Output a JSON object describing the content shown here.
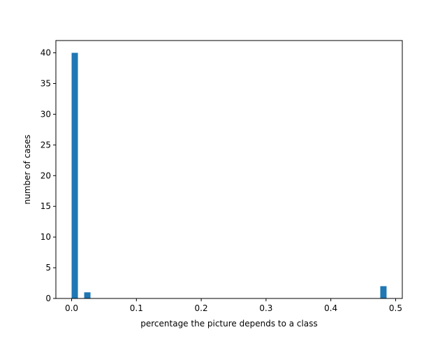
{
  "chart_data": {
    "type": "bar",
    "title": "",
    "xlabel": "percentage the picture depends to a class",
    "ylabel": "number of cases",
    "xlim": [
      -0.0243,
      0.5103
    ],
    "ylim": [
      0,
      42
    ],
    "xticks": [
      0.0,
      0.1,
      0.2,
      0.3,
      0.4,
      0.5
    ],
    "xtick_labels": [
      "0.0",
      "0.1",
      "0.2",
      "0.3",
      "0.4",
      "0.5"
    ],
    "yticks": [
      0,
      5,
      10,
      15,
      20,
      25,
      30,
      35,
      40
    ],
    "ytick_labels": [
      "0",
      "5",
      "10",
      "15",
      "20",
      "25",
      "30",
      "35",
      "40"
    ],
    "bins": [
      {
        "x0": 0.0,
        "x1": 0.0097,
        "value": 40
      },
      {
        "x0": 0.0194,
        "x1": 0.0291,
        "value": 1
      },
      {
        "x0": 0.4763,
        "x1": 0.486,
        "value": 2
      }
    ],
    "color": "#1f77b4",
    "grid": false,
    "legend": "none"
  }
}
